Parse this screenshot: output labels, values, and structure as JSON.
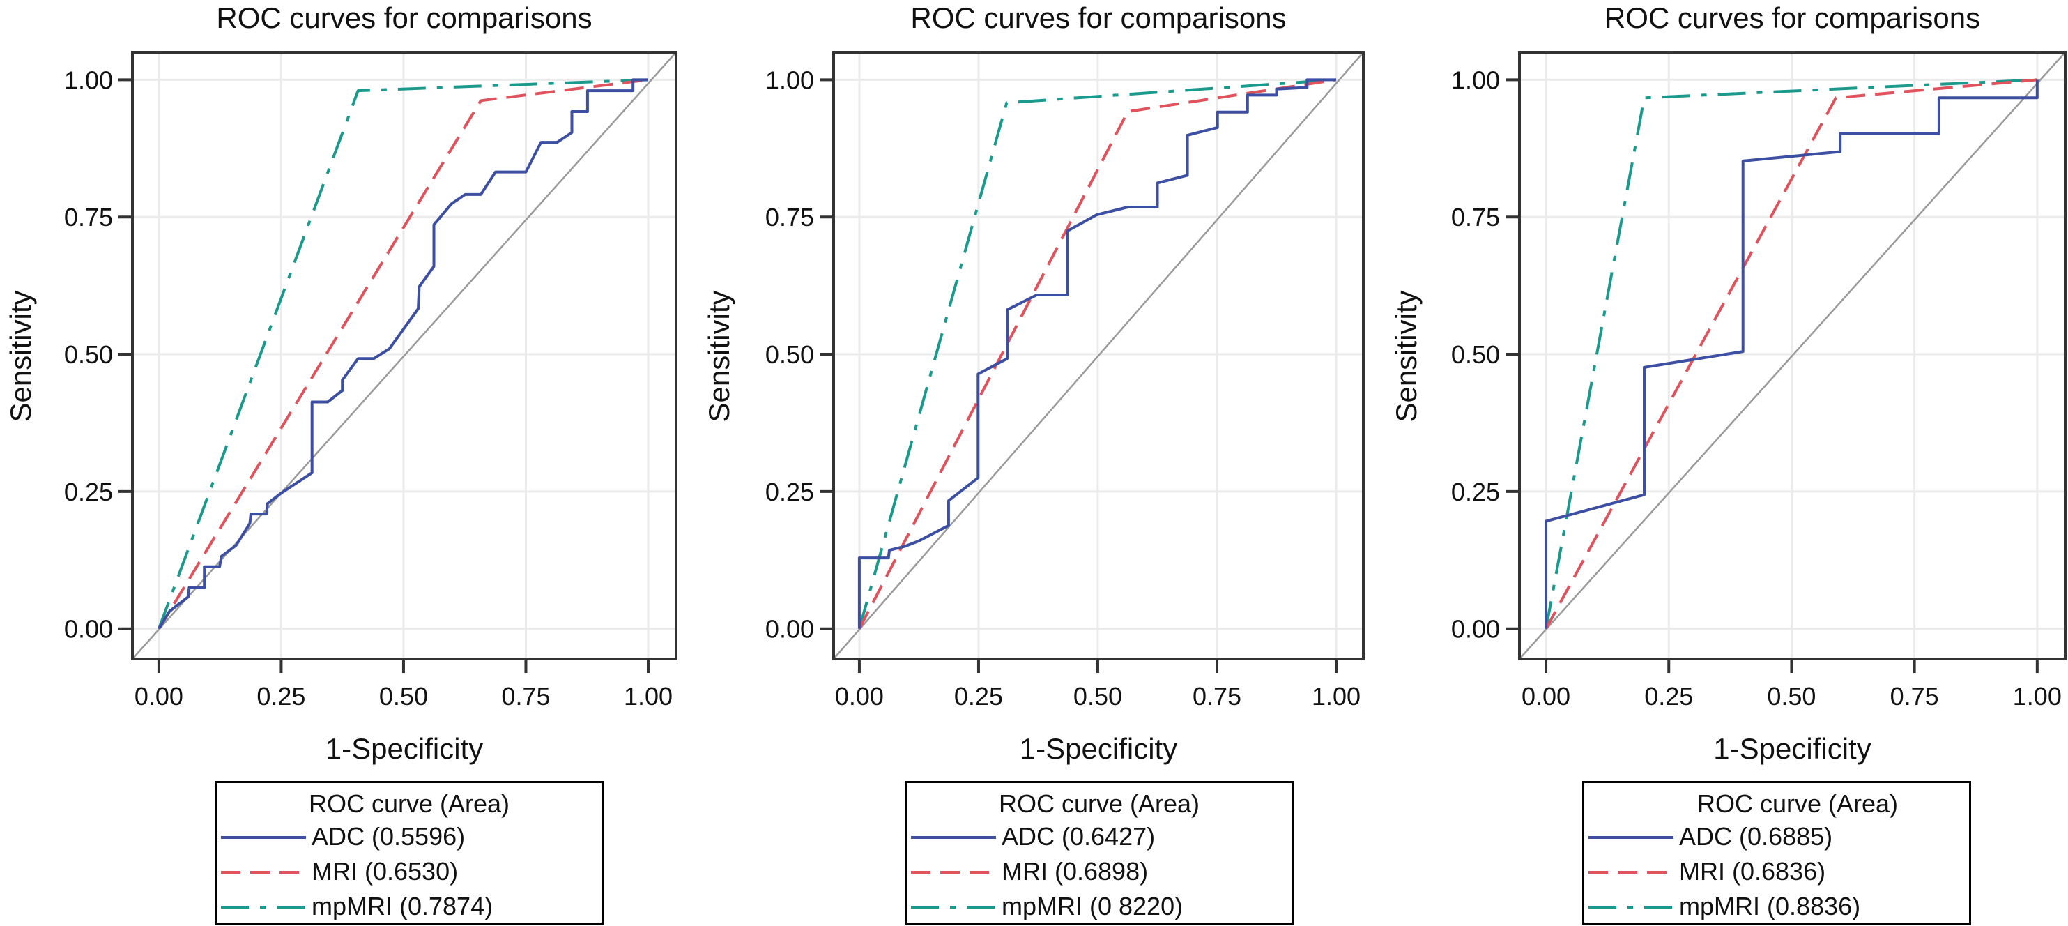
{
  "chart_data": [
    {
      "type": "line",
      "title": "ROC curves for comparisons",
      "xlabel": "1-Specificity",
      "ylabel": "Sensitivity",
      "xlim": [
        -0.054,
        1.057
      ],
      "ylim": [
        -0.055,
        1.05
      ],
      "xticks": [
        "0.00",
        "0.25",
        "0.50",
        "0.75",
        "1.00"
      ],
      "yticks": [
        "0.00",
        "0.25",
        "0.50",
        "0.75",
        "1.00"
      ],
      "grid": true,
      "reference_line": "diagonal",
      "legend": {
        "title": "ROC curve (Area)",
        "placement": "below",
        "entries": [
          "ADC (0.5596)",
          "MRI (0.6530)",
          "mpMRI (0.7874)"
        ]
      },
      "series": [
        {
          "name": "ADC",
          "auc": 0.5596,
          "color": "#3d4fa3",
          "style": "solid",
          "x": [
            0,
            0.022,
            0.06,
            0.062,
            0.093,
            0.093,
            0.124,
            0.128,
            0.158,
            0.186,
            0.188,
            0.22,
            0.222,
            0.25,
            0.313,
            0.313,
            0.345,
            0.375,
            0.375,
            0.407,
            0.439,
            0.471,
            0.53,
            0.532,
            0.562,
            0.562,
            0.598,
            0.626,
            0.658,
            0.688,
            0.75,
            0.781,
            0.814,
            0.844,
            0.844,
            0.876,
            0.876,
            0.969,
            0.969,
            1.0
          ],
          "y": [
            0,
            0.032,
            0.058,
            0.075,
            0.075,
            0.113,
            0.113,
            0.132,
            0.152,
            0.192,
            0.209,
            0.209,
            0.228,
            0.247,
            0.284,
            0.413,
            0.413,
            0.434,
            0.453,
            0.492,
            0.492,
            0.51,
            0.583,
            0.623,
            0.66,
            0.736,
            0.774,
            0.791,
            0.791,
            0.832,
            0.832,
            0.886,
            0.886,
            0.904,
            0.942,
            0.942,
            0.98,
            0.98,
            1.0,
            1.0
          ]
        },
        {
          "name": "MRI",
          "auc": 0.653,
          "color": "#e0525c",
          "style": "dashed",
          "x": [
            0,
            0.658,
            1.0
          ],
          "y": [
            0,
            0.962,
            1.0
          ]
        },
        {
          "name": "mpMRI",
          "auc": 0.7874,
          "color": "#1a9a8c",
          "style": "dashdot",
          "x": [
            0,
            0.407,
            1.0
          ],
          "y": [
            0,
            0.98,
            1.0
          ]
        }
      ]
    },
    {
      "type": "line",
      "title": "ROC curves for comparisons",
      "xlabel": "1-Specificity",
      "ylabel": "Sensitivity",
      "xlim": [
        -0.054,
        1.057
      ],
      "ylim": [
        -0.055,
        1.05
      ],
      "xticks": [
        "0.00",
        "0.25",
        "0.50",
        "0.75",
        "1.00"
      ],
      "yticks": [
        "0.00",
        "0.25",
        "0.50",
        "0.75",
        "1.00"
      ],
      "grid": true,
      "reference_line": "diagonal",
      "legend": {
        "title": "ROC curve (Area)",
        "placement": "below",
        "entries": [
          "ADC (0.6427)",
          "MRI (0.6898)",
          "mpMRI (0 8220)"
        ]
      },
      "series": [
        {
          "name": "ADC",
          "auc": 0.6427,
          "color": "#3d4fa3",
          "style": "solid",
          "x": [
            0,
            0,
            0.061,
            0.063,
            0.095,
            0.125,
            0.187,
            0.187,
            0.249,
            0.249,
            0.31,
            0.31,
            0.372,
            0.437,
            0.437,
            0.498,
            0.563,
            0.625,
            0.625,
            0.688,
            0.688,
            0.751,
            0.751,
            0.814,
            0.814,
            0.875,
            0.875,
            0.939,
            0.939,
            1.0
          ],
          "y": [
            0,
            0.129,
            0.129,
            0.143,
            0.15,
            0.16,
            0.188,
            0.233,
            0.275,
            0.464,
            0.492,
            0.581,
            0.608,
            0.608,
            0.725,
            0.754,
            0.768,
            0.768,
            0.812,
            0.826,
            0.899,
            0.913,
            0.941,
            0.941,
            0.972,
            0.972,
            0.983,
            0.986,
            1.0,
            1.0
          ]
        },
        {
          "name": "MRI",
          "auc": 0.6898,
          "color": "#e0525c",
          "style": "dashed",
          "x": [
            0,
            0.563,
            1.0
          ],
          "y": [
            0,
            0.942,
            1.0
          ]
        },
        {
          "name": "mpMRI",
          "auc": 0.822,
          "color": "#1a9a8c",
          "style": "dashdot",
          "x": [
            0,
            0.309,
            1.0
          ],
          "y": [
            0,
            0.958,
            1.0
          ]
        }
      ]
    },
    {
      "type": "line",
      "title": "ROC curves for comparisons",
      "xlabel": "1-Specificity",
      "ylabel": "Sensitivity",
      "xlim": [
        -0.054,
        1.057
      ],
      "ylim": [
        -0.055,
        1.05
      ],
      "xticks": [
        "0.00",
        "0.25",
        "0.50",
        "0.75",
        "1.00"
      ],
      "yticks": [
        "0.00",
        "0.25",
        "0.50",
        "0.75",
        "1.00"
      ],
      "grid": true,
      "reference_line": "diagonal",
      "legend": {
        "title": "ROC curve (Area)",
        "placement": "below",
        "entries": [
          "ADC (0.6885)",
          "MRI (0.6836)",
          "mpMRI (0.8836)"
        ]
      },
      "series": [
        {
          "name": "ADC",
          "auc": 0.6885,
          "color": "#3d4fa3",
          "style": "solid",
          "x": [
            0,
            0,
            0.2,
            0.2,
            0.401,
            0.401,
            0.599,
            0.599,
            0.8,
            0.8,
            1.0,
            1.0
          ],
          "y": [
            0,
            0.196,
            0.244,
            0.476,
            0.505,
            0.852,
            0.869,
            0.902,
            0.902,
            0.967,
            0.967,
            1.0
          ]
        },
        {
          "name": "MRI",
          "auc": 0.6836,
          "color": "#e0525c",
          "style": "dashed",
          "x": [
            0,
            0.59,
            1.0
          ],
          "y": [
            0,
            0.967,
            1.0
          ]
        },
        {
          "name": "mpMRI",
          "auc": 0.8836,
          "color": "#1a9a8c",
          "style": "dashdot",
          "x": [
            0,
            0.2,
            1.0
          ],
          "y": [
            0,
            0.967,
            1.0
          ]
        }
      ]
    }
  ]
}
